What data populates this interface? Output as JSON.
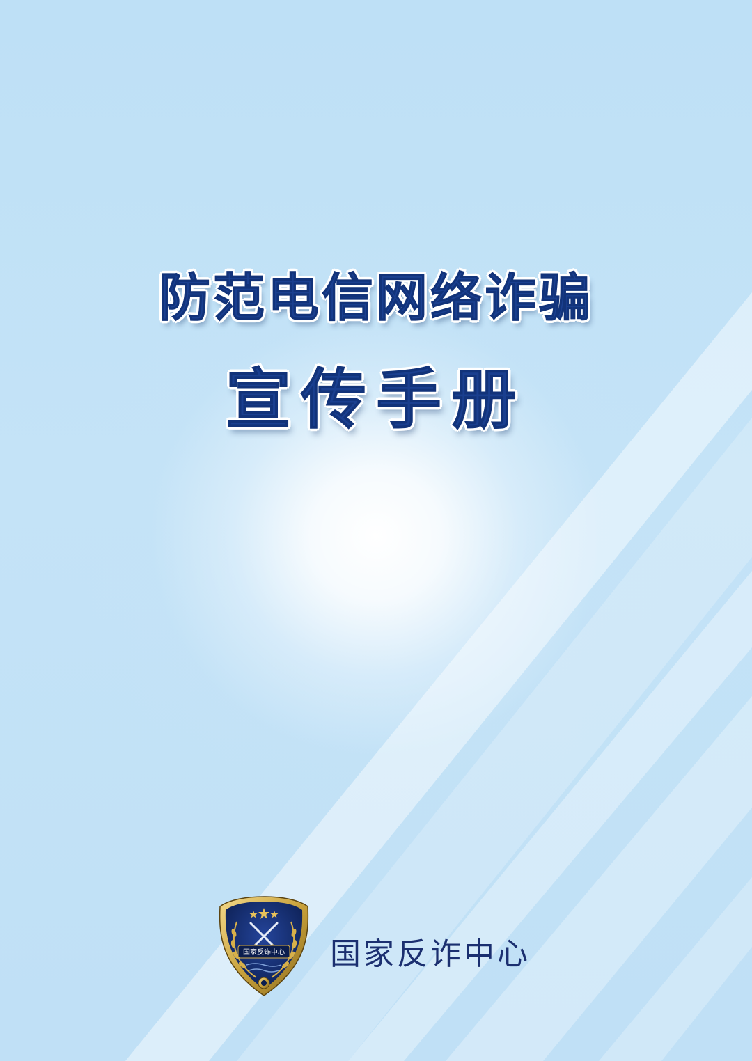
{
  "cover": {
    "title_line1": "防范电信网络诈骗",
    "title_line2": "宣传手册",
    "organization": "国家反诈中心"
  },
  "badge": {
    "text": "国家反诈中心",
    "icon": "police-shield-emblem-icon"
  },
  "colors": {
    "background": "#bfe0f6",
    "title": "#1a3f8f",
    "organization_text": "#1b2f70",
    "badge_navy": "#0f2560",
    "badge_gold": "#c9a23c"
  }
}
